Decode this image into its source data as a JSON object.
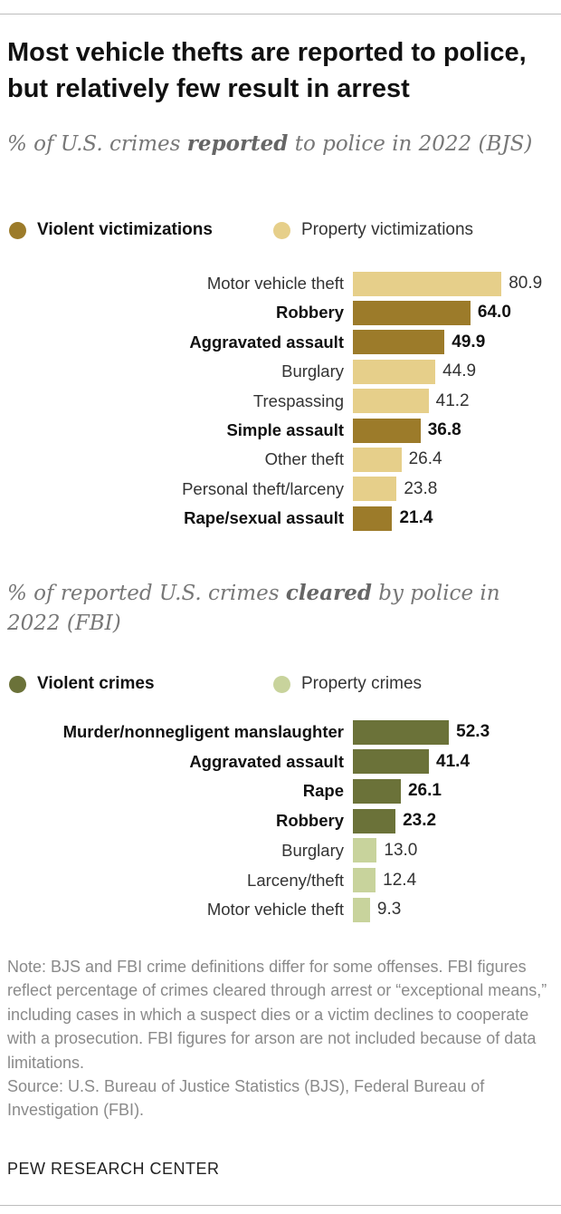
{
  "title": "Most vehicle thefts are reported to police, but relatively few result in arrest",
  "note": "Note: BJS and FBI crime definitions differ for some offenses. FBI figures reflect percentage of crimes cleared through arrest or “exceptional means,” including cases in which a suspect dies or a victim declines to cooperate with a prosecution. FBI figures for arson are not included because of data limitations.",
  "source": "Source: U.S. Bureau of Justice Statistics (BJS), Federal Bureau of Investigation (FBI).",
  "footer": "PEW RESEARCH CENTER",
  "chart_data": [
    {
      "type": "bar",
      "orientation": "horizontal",
      "subtitle": [
        "% of U.S. crimes",
        "reported",
        "to police in 2022 (BJS)"
      ],
      "categories": [
        "Motor vehicle theft",
        "Robbery",
        "Aggravated assault",
        "Burglary",
        "Trespassing",
        "Simple assault",
        "Other theft",
        "Personal theft/larceny",
        "Rape/sexual assault"
      ],
      "series": [
        {
          "name": "Violent victimizations",
          "color": "#9c7b2a",
          "values": [
            null,
            64.0,
            49.9,
            null,
            null,
            36.8,
            null,
            null,
            21.4
          ],
          "value_labels": [
            null,
            "64.0",
            "49.9",
            null,
            null,
            "36.8",
            null,
            null,
            "21.4"
          ]
        },
        {
          "name": "Property victimizations",
          "color": "#e6cf8a",
          "values": [
            80.9,
            null,
            null,
            44.9,
            41.2,
            null,
            26.4,
            23.8,
            null
          ],
          "value_labels": [
            "80.9",
            null,
            null,
            "44.9",
            "41.2",
            null,
            "26.4",
            "23.8",
            null
          ]
        }
      ]
    },
    {
      "type": "bar",
      "orientation": "horizontal",
      "subtitle": [
        "% of reported U.S. crimes",
        "cleared",
        "by police in 2022 (FBI)"
      ],
      "categories": [
        "Murder/nonnegligent manslaughter",
        "Aggravated assault",
        "Rape",
        "Robbery",
        "Burglary",
        "Larceny/theft",
        "Motor vehicle theft"
      ],
      "series": [
        {
          "name": "Violent crimes",
          "color": "#6b7239",
          "values": [
            52.3,
            41.4,
            26.1,
            23.2,
            null,
            null,
            null
          ],
          "value_labels": [
            "52.3",
            "41.4",
            "26.1",
            "23.2",
            null,
            null,
            null
          ]
        },
        {
          "name": "Property crimes",
          "color": "#c8d39c",
          "values": [
            null,
            null,
            null,
            null,
            13.0,
            12.4,
            9.3
          ],
          "value_labels": [
            null,
            null,
            null,
            null,
            "13.0",
            "12.4",
            "9.3"
          ]
        }
      ]
    }
  ]
}
